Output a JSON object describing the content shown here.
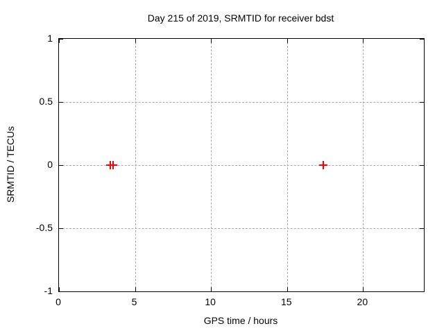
{
  "chart_data": {
    "type": "scatter",
    "title": "Day 215 of 2019, SRMTID for receiver bdst",
    "xlabel": "GPS time / hours",
    "ylabel": "SRMTID / TECUs",
    "xlim": [
      0,
      24
    ],
    "ylim": [
      -1,
      1
    ],
    "xticks": {
      "values": [
        0,
        5,
        10,
        15,
        20
      ],
      "labels": [
        "0",
        "5",
        "10",
        "15",
        "20"
      ]
    },
    "yticks": {
      "values": [
        1,
        0.5,
        0,
        -0.5,
        -1
      ],
      "labels": [
        "1",
        "0.5",
        "0",
        "-0.5",
        "-1"
      ]
    },
    "grid": true,
    "legend": "none",
    "series": [
      {
        "name": "SRMTID",
        "marker": "plus",
        "color": "#ff0000",
        "points": [
          {
            "x": 3.38,
            "y": 0
          },
          {
            "x": 3.56,
            "y": 0
          },
          {
            "x": 17.38,
            "y": 0
          }
        ]
      }
    ],
    "colors": {
      "background": "#ffffff",
      "border": "#000000",
      "grid": "#a8a8a8",
      "text": "#000000",
      "marker": "#ff0000"
    }
  }
}
